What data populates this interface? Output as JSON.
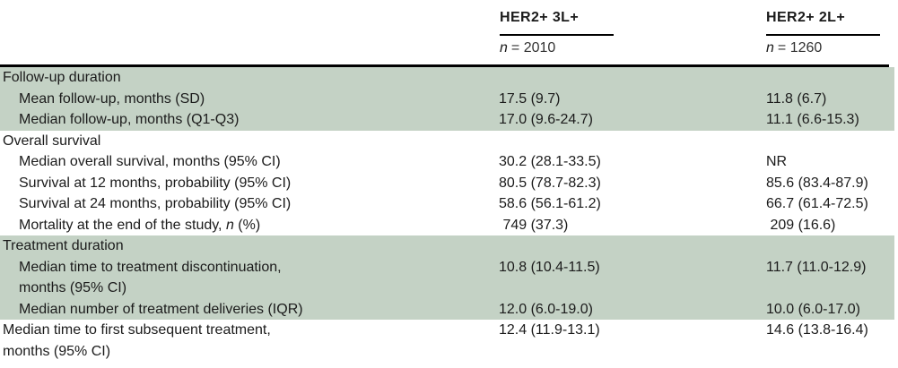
{
  "columns": [
    {
      "header": "HER2+ 3L+",
      "n_symbol": "n",
      "n_equals": "= 2010"
    },
    {
      "header": "HER2+ 2L+",
      "n_symbol": "n",
      "n_equals": "= 1260"
    }
  ],
  "sections": {
    "followup": {
      "title": "Follow-up duration",
      "rows": [
        {
          "label": "Mean follow-up, months (SD)",
          "col1": "17.5 (9.7)",
          "col2": "11.8 (6.7)"
        },
        {
          "label": "Median follow-up, months (Q1-Q3)",
          "col1": "17.0 (9.6-24.7)",
          "col2": "11.1 (6.6-15.3)"
        }
      ]
    },
    "survival": {
      "title": "Overall survival",
      "rows": [
        {
          "label": "Median overall survival, months (95% CI)",
          "col1": "30.2 (28.1-33.5)",
          "col2": "NR"
        },
        {
          "label": "Survival at 12 months, probability (95% CI)",
          "col1": "80.5 (78.7-82.3)",
          "col2": "85.6 (83.4-87.9)"
        },
        {
          "label": "Survival at 24 months, probability (95% CI)",
          "col1": "58.6 (56.1-61.2)",
          "col2": "66.7 (61.4-72.5)"
        },
        {
          "label_pre": "Mortality at the end of the study, ",
          "label_italic": "n",
          "label_post": " (%)",
          "col1": " 749 (37.3)",
          "col2": " 209 (16.6)"
        }
      ]
    },
    "treatment": {
      "title": "Treatment duration",
      "rows": [
        {
          "label": "Median time to treatment discontinuation,\nmonths (95% CI)",
          "col1": "10.8 (10.4-11.5)",
          "col2": "11.7 (11.0-12.9)"
        },
        {
          "label": "Median number of treatment deliveries (IQR)",
          "col1": "12.0 (6.0-19.0)",
          "col2": "10.0 (6.0-17.0)"
        }
      ]
    },
    "subsequent": {
      "rows": [
        {
          "label": "Median time to first subsequent treatment,\nmonths (95% CI)",
          "col1": "12.4 (11.9-13.1)",
          "col2": "14.6 (13.8-16.4)"
        }
      ]
    }
  },
  "colors": {
    "section_shade": "#c4d2c5",
    "rule": "#000000",
    "text": "#1b1b1b"
  }
}
